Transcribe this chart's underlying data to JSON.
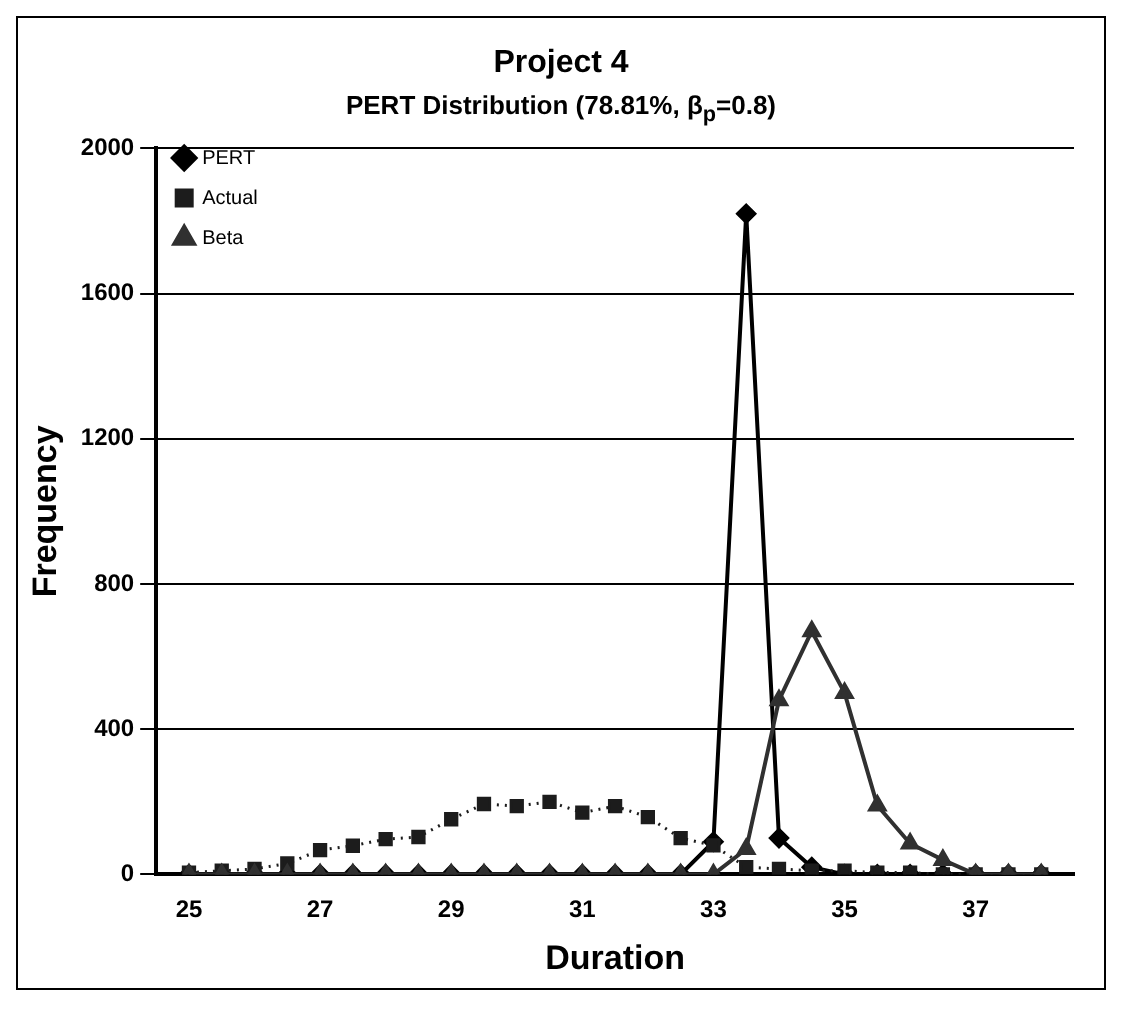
{
  "chart_data": {
    "type": "line",
    "title": "Project 4",
    "subtitle": "PERT  Distribution (78.81%, β$_{p}$=0.8)",
    "xlabel": "Duration",
    "ylabel": "Frequency",
    "x": [
      25,
      25.5,
      26,
      26.5,
      27,
      27.5,
      28,
      28.5,
      29,
      29.5,
      30,
      30.5,
      31,
      31.5,
      32,
      32.5,
      33,
      33.5,
      34,
      34.5,
      35,
      35.5,
      36,
      36.5,
      37,
      37.5,
      38
    ],
    "series": [
      {
        "name": "PERT",
        "color": "#000000",
        "marker": "diamond",
        "line_style": "solid",
        "values": [
          0,
          0,
          0,
          0,
          0,
          0,
          0,
          0,
          0,
          0,
          0,
          0,
          0,
          0,
          0,
          0,
          90,
          1820,
          100,
          20,
          0,
          0,
          0,
          0,
          0,
          0,
          0
        ]
      },
      {
        "name": "Actual",
        "color": "#1c1c1c",
        "marker": "square",
        "line_style": "dotted",
        "values": [
          5,
          10,
          15,
          30,
          67,
          79,
          97,
          103,
          152,
          194,
          188,
          200,
          170,
          188,
          158,
          100,
          80,
          20,
          15,
          10,
          10,
          5,
          5,
          0,
          0,
          0,
          0
        ]
      },
      {
        "name": "Beta",
        "color": "#303030",
        "marker": "triangle",
        "line_style": "solid",
        "values": [
          0,
          0,
          0,
          0,
          0,
          0,
          0,
          0,
          0,
          0,
          0,
          0,
          0,
          0,
          0,
          0,
          0,
          70,
          480,
          670,
          500,
          190,
          85,
          40,
          0,
          0,
          0
        ]
      }
    ],
    "xlim": [
      24.5,
      38.5
    ],
    "xticks": [
      25,
      27,
      29,
      31,
      33,
      35,
      37
    ],
    "ylim": [
      0,
      2000
    ],
    "yticks": [
      0,
      400,
      800,
      1200,
      1600,
      2000
    ],
    "grid": "y",
    "legend": "top left"
  }
}
